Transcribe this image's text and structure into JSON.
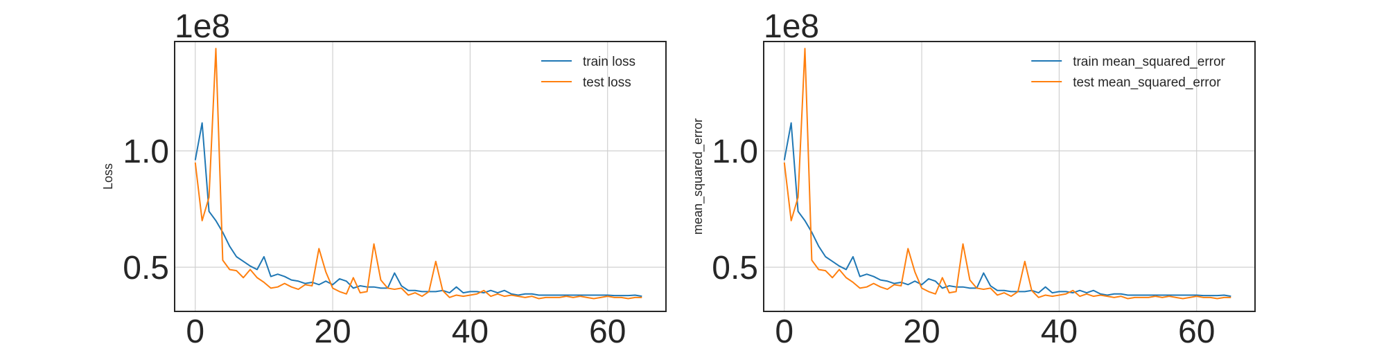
{
  "chart_data": [
    {
      "type": "line",
      "title": "",
      "xlabel": "",
      "ylabel": "Loss",
      "offset_text": "1e8",
      "xlim": [
        -3,
        68.5
      ],
      "ylim": [
        0.31,
        1.47
      ],
      "xticks": [
        0,
        20,
        40,
        60
      ],
      "xtick_labels": [
        "0",
        "20",
        "40",
        "60"
      ],
      "yticks": [
        0.5,
        1.0
      ],
      "ytick_labels": [
        "0.5",
        "1.0"
      ],
      "grid": true,
      "legend_position": "top-right",
      "series": [
        {
          "name": "train loss",
          "color": "#1f77b4",
          "x": [
            0,
            1,
            2,
            3,
            4,
            5,
            6,
            7,
            8,
            9,
            10,
            11,
            12,
            13,
            14,
            15,
            16,
            17,
            18,
            19,
            20,
            21,
            22,
            23,
            24,
            25,
            26,
            27,
            28,
            29,
            30,
            31,
            32,
            33,
            34,
            35,
            36,
            37,
            38,
            39,
            40,
            41,
            42,
            43,
            44,
            45,
            46,
            47,
            48,
            49,
            50,
            51,
            52,
            53,
            54,
            55,
            56,
            57,
            58,
            59,
            60,
            61,
            62,
            63,
            64,
            65
          ],
          "values": [
            0.96,
            1.12,
            0.74,
            0.7,
            0.65,
            0.59,
            0.545,
            0.525,
            0.505,
            0.49,
            0.545,
            0.46,
            0.47,
            0.46,
            0.445,
            0.44,
            0.43,
            0.435,
            0.425,
            0.44,
            0.425,
            0.45,
            0.44,
            0.41,
            0.42,
            0.415,
            0.415,
            0.41,
            0.41,
            0.475,
            0.42,
            0.4,
            0.4,
            0.395,
            0.395,
            0.395,
            0.4,
            0.39,
            0.415,
            0.39,
            0.395,
            0.395,
            0.39,
            0.4,
            0.39,
            0.4,
            0.385,
            0.38,
            0.385,
            0.385,
            0.38,
            0.38,
            0.38,
            0.38,
            0.38,
            0.38,
            0.38,
            0.38,
            0.38,
            0.38,
            0.38,
            0.378,
            0.378,
            0.378,
            0.38,
            0.375
          ]
        },
        {
          "name": "test loss",
          "color": "#ff7f0e",
          "x": [
            0,
            1,
            2,
            3,
            4,
            5,
            6,
            7,
            8,
            9,
            10,
            11,
            12,
            13,
            14,
            15,
            16,
            17,
            18,
            19,
            20,
            21,
            22,
            23,
            24,
            25,
            26,
            27,
            28,
            29,
            30,
            31,
            32,
            33,
            34,
            35,
            36,
            37,
            38,
            39,
            40,
            41,
            42,
            43,
            44,
            45,
            46,
            47,
            48,
            49,
            50,
            51,
            52,
            53,
            54,
            55,
            56,
            57,
            58,
            59,
            60,
            61,
            62,
            63,
            64,
            65
          ],
          "values": [
            0.95,
            0.7,
            0.8,
            1.44,
            0.53,
            0.49,
            0.485,
            0.455,
            0.49,
            0.455,
            0.435,
            0.41,
            0.415,
            0.43,
            0.415,
            0.405,
            0.425,
            0.42,
            0.58,
            0.48,
            0.41,
            0.395,
            0.385,
            0.455,
            0.39,
            0.395,
            0.6,
            0.445,
            0.41,
            0.405,
            0.41,
            0.38,
            0.39,
            0.375,
            0.395,
            0.525,
            0.4,
            0.37,
            0.38,
            0.375,
            0.38,
            0.385,
            0.4,
            0.375,
            0.385,
            0.375,
            0.38,
            0.375,
            0.37,
            0.375,
            0.365,
            0.37,
            0.37,
            0.37,
            0.375,
            0.37,
            0.375,
            0.37,
            0.365,
            0.37,
            0.375,
            0.37,
            0.37,
            0.365,
            0.37,
            0.37
          ]
        }
      ]
    },
    {
      "type": "line",
      "title": "",
      "xlabel": "",
      "ylabel": "mean_squared_error",
      "offset_text": "1e8",
      "xlim": [
        -3,
        68.5
      ],
      "ylim": [
        0.31,
        1.47
      ],
      "xticks": [
        0,
        20,
        40,
        60
      ],
      "xtick_labels": [
        "0",
        "20",
        "40",
        "60"
      ],
      "yticks": [
        0.5,
        1.0
      ],
      "ytick_labels": [
        "0.5",
        "1.0"
      ],
      "grid": true,
      "legend_position": "top-right",
      "series": [
        {
          "name": "train mean_squared_error",
          "color": "#1f77b4",
          "x": [
            0,
            1,
            2,
            3,
            4,
            5,
            6,
            7,
            8,
            9,
            10,
            11,
            12,
            13,
            14,
            15,
            16,
            17,
            18,
            19,
            20,
            21,
            22,
            23,
            24,
            25,
            26,
            27,
            28,
            29,
            30,
            31,
            32,
            33,
            34,
            35,
            36,
            37,
            38,
            39,
            40,
            41,
            42,
            43,
            44,
            45,
            46,
            47,
            48,
            49,
            50,
            51,
            52,
            53,
            54,
            55,
            56,
            57,
            58,
            59,
            60,
            61,
            62,
            63,
            64,
            65
          ],
          "values": [
            0.96,
            1.12,
            0.74,
            0.7,
            0.65,
            0.59,
            0.545,
            0.525,
            0.505,
            0.49,
            0.545,
            0.46,
            0.47,
            0.46,
            0.445,
            0.44,
            0.43,
            0.435,
            0.425,
            0.44,
            0.425,
            0.45,
            0.44,
            0.41,
            0.42,
            0.415,
            0.415,
            0.41,
            0.41,
            0.475,
            0.42,
            0.4,
            0.4,
            0.395,
            0.395,
            0.395,
            0.4,
            0.39,
            0.415,
            0.39,
            0.395,
            0.395,
            0.39,
            0.4,
            0.39,
            0.4,
            0.385,
            0.38,
            0.385,
            0.385,
            0.38,
            0.38,
            0.38,
            0.38,
            0.38,
            0.38,
            0.38,
            0.38,
            0.38,
            0.38,
            0.38,
            0.378,
            0.378,
            0.378,
            0.38,
            0.375
          ]
        },
        {
          "name": "test mean_squared_error",
          "color": "#ff7f0e",
          "x": [
            0,
            1,
            2,
            3,
            4,
            5,
            6,
            7,
            8,
            9,
            10,
            11,
            12,
            13,
            14,
            15,
            16,
            17,
            18,
            19,
            20,
            21,
            22,
            23,
            24,
            25,
            26,
            27,
            28,
            29,
            30,
            31,
            32,
            33,
            34,
            35,
            36,
            37,
            38,
            39,
            40,
            41,
            42,
            43,
            44,
            45,
            46,
            47,
            48,
            49,
            50,
            51,
            52,
            53,
            54,
            55,
            56,
            57,
            58,
            59,
            60,
            61,
            62,
            63,
            64,
            65
          ],
          "values": [
            0.95,
            0.7,
            0.8,
            1.44,
            0.53,
            0.49,
            0.485,
            0.455,
            0.49,
            0.455,
            0.435,
            0.41,
            0.415,
            0.43,
            0.415,
            0.405,
            0.425,
            0.42,
            0.58,
            0.48,
            0.41,
            0.395,
            0.385,
            0.455,
            0.39,
            0.395,
            0.6,
            0.445,
            0.41,
            0.405,
            0.41,
            0.38,
            0.39,
            0.375,
            0.395,
            0.525,
            0.4,
            0.37,
            0.38,
            0.375,
            0.38,
            0.385,
            0.4,
            0.375,
            0.385,
            0.375,
            0.38,
            0.375,
            0.37,
            0.375,
            0.365,
            0.37,
            0.37,
            0.37,
            0.375,
            0.37,
            0.375,
            0.37,
            0.365,
            0.37,
            0.375,
            0.37,
            0.37,
            0.365,
            0.37,
            0.37
          ]
        }
      ]
    }
  ]
}
